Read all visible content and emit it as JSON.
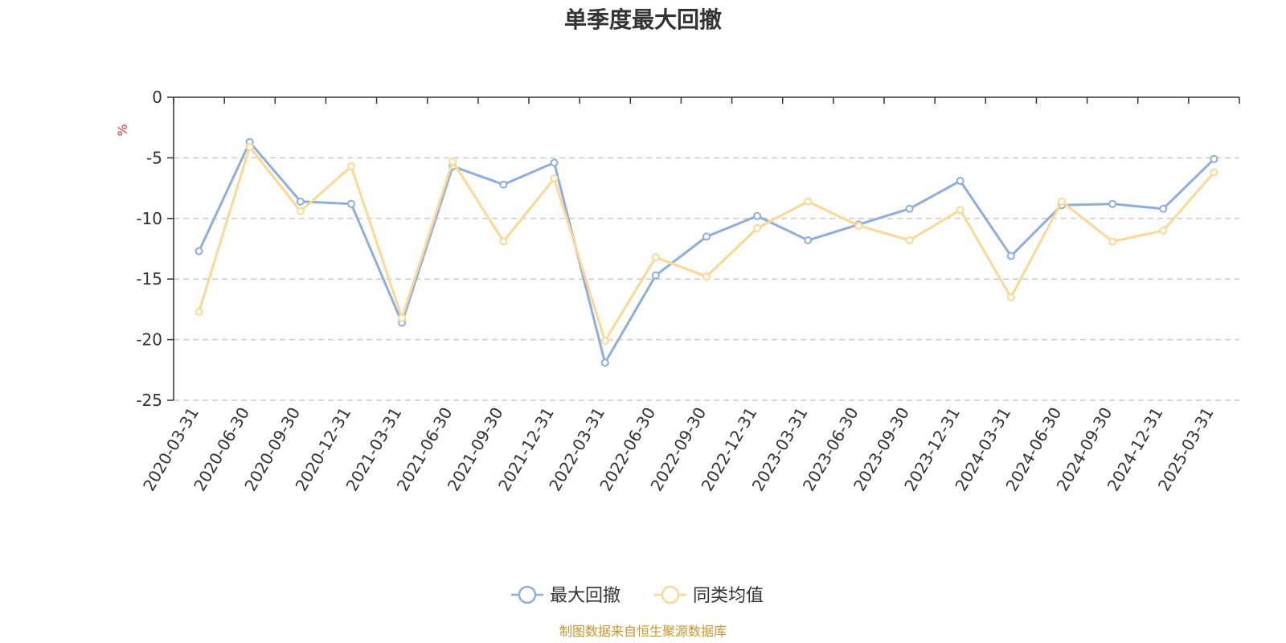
{
  "chart_data": {
    "type": "line",
    "title": "单季度最大回撤",
    "unit": "%",
    "ylim": [
      -25,
      0
    ],
    "yticks": [
      "0",
      "-5",
      "-10",
      "-15",
      "-20",
      "-25"
    ],
    "grid": true,
    "legend_position": "bottom-center",
    "categories": [
      "2020-03-31",
      "2020-06-30",
      "2020-09-30",
      "2020-12-31",
      "2021-03-31",
      "2021-06-30",
      "2021-09-30",
      "2021-12-31",
      "2022-03-31",
      "2022-06-30",
      "2022-09-30",
      "2022-12-31",
      "2023-03-31",
      "2023-06-30",
      "2023-09-30",
      "2023-12-31",
      "2024-03-31",
      "2024-06-30",
      "2024-09-30",
      "2024-12-31",
      "2025-03-31"
    ],
    "series": [
      {
        "name": "最大回撤",
        "color": "#8eaedb",
        "values": [
          -12.7,
          -3.7,
          -8.6,
          -8.8,
          -18.6,
          -5.7,
          -7.2,
          -5.4,
          -21.9,
          -14.7,
          -11.5,
          -9.8,
          -11.8,
          -10.5,
          -9.2,
          -6.9,
          -13.1,
          -8.9,
          -8.8,
          -9.2,
          -5.1
        ]
      },
      {
        "name": "同类均值",
        "color": "#fbd994",
        "values": [
          -17.7,
          -4.1,
          -9.4,
          -5.7,
          -18.2,
          -5.3,
          -11.9,
          -6.7,
          -20.1,
          -13.2,
          -14.8,
          -10.8,
          -8.6,
          -10.6,
          -11.8,
          -9.3,
          -16.5,
          -8.6,
          -11.9,
          -11.0,
          -6.2
        ]
      }
    ]
  },
  "footer": {
    "source": "制图数据来自恒生聚源数据库"
  },
  "colors": {
    "axis": "#333333",
    "grid": "#cccccc",
    "unit": "#e8322d",
    "source": "#c8962e",
    "title": "#333333"
  }
}
